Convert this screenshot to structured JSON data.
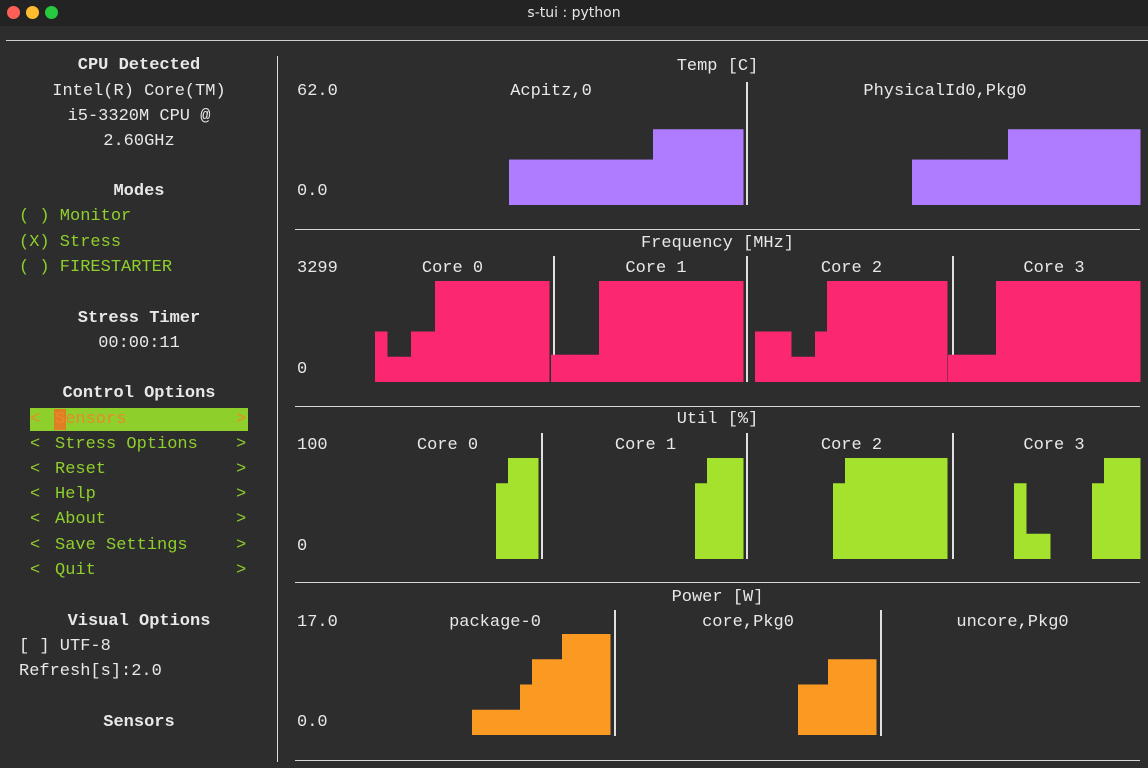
{
  "window": {
    "title": "s-tui : python"
  },
  "sidebar": {
    "cpu_title": "CPU Detected",
    "cpu_lines": [
      "Intel(R) Core(TM)",
      "i5-3320M CPU @",
      "2.60GHz"
    ],
    "modes_title": "Modes",
    "modes": [
      "( ) Monitor",
      "(X) Stress",
      "( ) FIRESTARTER"
    ],
    "timer_title": "Stress Timer",
    "timer_value": "00:00:11",
    "control_title": "Control Options",
    "control_items": [
      {
        "text": "Sensors",
        "prefix": "<",
        "suffix": ">"
      },
      {
        "text": "Stress Options",
        "prefix": "<",
        "suffix": ">"
      },
      {
        "text": "Reset",
        "prefix": "<",
        "suffix": ">"
      },
      {
        "text": "Help",
        "prefix": "<",
        "suffix": ">"
      },
      {
        "text": "About",
        "prefix": "<",
        "suffix": ">"
      },
      {
        "text": "Save Settings",
        "prefix": "<",
        "suffix": ">"
      },
      {
        "text": "Quit",
        "prefix": "<",
        "suffix": ">"
      }
    ],
    "visual_title": "Visual Options",
    "utf8": "[ ] UTF-8",
    "refresh": "Refresh[s]:2.0",
    "sensors_title": "Sensors"
  },
  "graphs": {
    "temp": {
      "title": "Temp [C]",
      "ymax": "62.0",
      "ymin": "0.0",
      "color": "#b07cff",
      "cores": [
        "Acpitz,0",
        "PhysicalId0,Pkg0"
      ],
      "series": [
        [
          0.45,
          0.45,
          0.45,
          0.45,
          0.45,
          0.45,
          0.45,
          0.45,
          0.45,
          0.45,
          0.45,
          0.45,
          0.45,
          0.45,
          0.45,
          0.45,
          0.45,
          0.45,
          0.45,
          0.45,
          0.45,
          0.45,
          0.45,
          0.45,
          0.75,
          0.75,
          0.75,
          0.75,
          0.75,
          0.75,
          0.75,
          0.75,
          0.75,
          0.75,
          0.75,
          0.75,
          0.75,
          0.75,
          0.75
        ],
        [
          0.45,
          0.45,
          0.45,
          0.45,
          0.45,
          0.45,
          0.45,
          0.45,
          0.45,
          0.45,
          0.45,
          0.45,
          0.45,
          0.45,
          0.45,
          0.45,
          0.75,
          0.75,
          0.75,
          0.75,
          0.75,
          0.75,
          0.75,
          0.75,
          0.75,
          0.75,
          0.75,
          0.75,
          0.75,
          0.75,
          0.75,
          0.75,
          0.75,
          0.75,
          0.75,
          0.75,
          0.75,
          0.75
        ]
      ]
    },
    "freq": {
      "title": "Frequency [MHz]",
      "ymax": "3299",
      "ymin": "0",
      "color": "#fb2770",
      "cores": [
        "Core 0",
        "Core 1",
        "Core 2",
        "Core 3"
      ],
      "series": [
        [
          0.0,
          0.0,
          0.0,
          0.0,
          0.0,
          0.0,
          0.0,
          0.0,
          0.0,
          0.0,
          0.0,
          0.0,
          0.5,
          0.5,
          0.25,
          0.25,
          0.25,
          0.25,
          0.5,
          0.5,
          0.5,
          0.5,
          1,
          1,
          1,
          1,
          1,
          1,
          1,
          1,
          1,
          1,
          1,
          1,
          1,
          1,
          1,
          1,
          1,
          1,
          1
        ],
        [
          0.27,
          0.27,
          0.27,
          0.27,
          0.27,
          0.27,
          0.27,
          0.27,
          1,
          1,
          1,
          1,
          1,
          1,
          1,
          1,
          1,
          1,
          1,
          1,
          1,
          1,
          1,
          1,
          1,
          1,
          1,
          1,
          1,
          1,
          1,
          1
        ],
        [
          0.5,
          0.5,
          0.5,
          0.5,
          0.5,
          0.5,
          0.25,
          0.25,
          0.25,
          0.25,
          0.5,
          0.5,
          1,
          1,
          1,
          1,
          1,
          1,
          1,
          1,
          1,
          1,
          1,
          1,
          1,
          1,
          1,
          1,
          1,
          1,
          1,
          1
        ],
        [
          0.27,
          0.27,
          0.27,
          0.27,
          0.27,
          0.27,
          0.27,
          0.27,
          1,
          1,
          1,
          1,
          1,
          1,
          1,
          1,
          1,
          1,
          1,
          1,
          1,
          1,
          1,
          1,
          1,
          1,
          1,
          1,
          1,
          1,
          1,
          1
        ]
      ]
    },
    "util": {
      "title": "Util [%]",
      "ymax": "100",
      "ymin": "0",
      "color": "#a5e22e",
      "cores": [
        "Core 0",
        "Core 1",
        "Core 2",
        "Core 3"
      ],
      "series": [
        [
          0,
          0,
          0,
          0,
          0,
          0,
          0,
          0,
          0,
          0,
          0,
          0,
          0,
          0,
          0,
          0,
          0,
          0,
          0,
          0,
          0,
          0,
          0,
          0.75,
          0.75,
          1,
          1,
          1,
          1,
          1
        ],
        [
          0,
          0,
          0,
          0,
          0,
          0,
          0,
          0,
          0,
          0,
          0,
          0,
          0,
          0,
          0,
          0,
          0,
          0,
          0,
          0,
          0,
          0,
          0,
          0,
          0,
          0,
          0.75,
          0.75,
          1,
          1,
          1,
          1,
          1,
          1
        ],
        [
          0,
          0,
          0,
          0,
          0,
          0,
          0,
          0,
          0,
          0,
          0,
          0,
          0,
          0.75,
          0.75,
          1,
          1,
          1,
          1,
          1,
          1,
          1,
          1,
          1,
          1,
          1,
          1,
          1,
          1,
          1,
          1,
          1
        ],
        [
          0,
          0,
          0,
          0,
          0,
          0,
          0,
          0,
          0,
          0,
          0,
          0,
          0,
          0,
          0,
          0,
          0,
          0,
          0.75,
          0.75,
          0.25,
          0.25,
          0.25,
          0.25,
          0,
          0,
          0,
          0,
          0,
          0,
          0,
          0.75,
          0.75,
          1,
          1,
          1,
          1,
          1,
          1
        ]
      ]
    },
    "power": {
      "title": "Power [W]",
      "ymax": "17.0",
      "ymin": "0.0",
      "color": "#fa9a23",
      "cores": [
        "package-0",
        "core,Pkg0",
        "uncore,Pkg0"
      ],
      "series": [
        [
          0,
          0,
          0,
          0,
          0.25,
          0.25,
          0.25,
          0.25,
          0.25,
          0.25,
          0.25,
          0.25,
          0.5,
          0.5,
          0.75,
          0.75,
          0.75,
          0.75,
          0.75,
          1,
          1,
          1,
          1,
          1,
          1,
          1,
          1
        ],
        [
          0,
          0,
          0,
          0,
          0,
          0,
          0,
          0,
          0,
          0,
          0,
          0,
          0,
          0,
          0,
          0,
          0,
          0,
          0,
          0,
          0.5,
          0.5,
          0.5,
          0.5,
          0.5,
          0.75,
          0.75,
          0.75,
          0.75,
          0.75,
          0.75,
          0.75,
          0.75
        ],
        []
      ]
    }
  }
}
